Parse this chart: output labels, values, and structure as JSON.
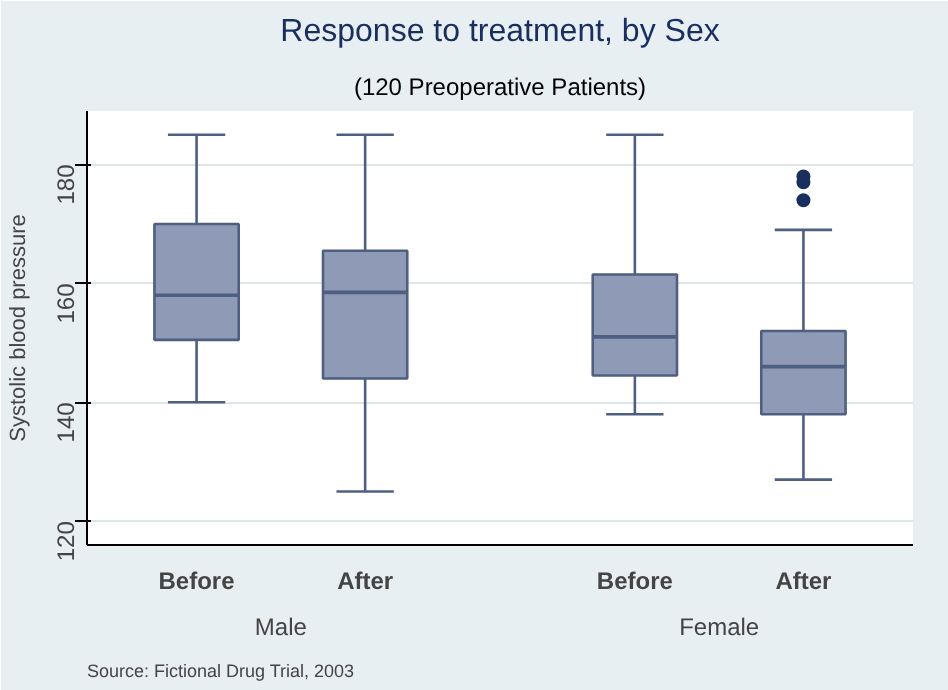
{
  "chart_data": {
    "type": "box",
    "title": "Response to treatment, by Sex",
    "subtitle": "(120 Preoperative Patients)",
    "ylabel": "Systolic blood pressure",
    "categories": [
      "Before",
      "After",
      "Before",
      "After"
    ],
    "series": [
      {
        "color": "#8e9ab6",
        "boxes": [
          {
            "low": 140,
            "q1": 150.5,
            "median": 158,
            "q3": 170,
            "high": 185
          },
          {
            "low": 125,
            "q1": 144,
            "median": 158.5,
            "q3": 165.5,
            "high": 185
          },
          {
            "low": 138,
            "q1": 144.5,
            "median": 151,
            "q3": 161.5,
            "high": 185
          },
          {
            "low": 127,
            "q1": 138,
            "median": 146,
            "q3": 152,
            "high": 169,
            "outliers": [
              178,
              177,
              174
            ]
          }
        ]
      }
    ],
    "ylim": [
      116,
      189
    ],
    "yticks": [
      120,
      140,
      160,
      180
    ],
    "grid": "y",
    "annotations": [
      "Male",
      "Female",
      "Source:  Fictional Drug Trial, 2003"
    ]
  }
}
